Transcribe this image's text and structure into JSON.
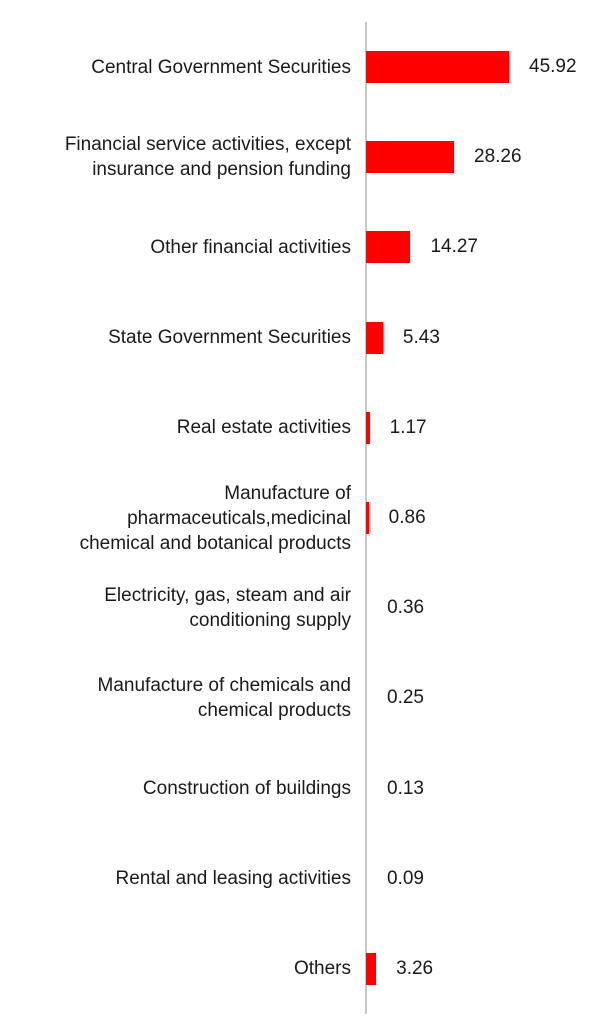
{
  "chart_data": {
    "type": "bar",
    "orientation": "horizontal",
    "categories": [
      "Central Government Securities",
      "Financial service activities, except insurance and pension funding",
      "Other financial activities",
      "State Government Securities",
      "Real estate activities",
      "Manufacture of pharmaceuticals,medicinal chemical and botanical products",
      "Electricity, gas, steam and air conditioning supply",
      "Manufacture of chemicals and chemical products",
      "Construction of buildings",
      "Rental and leasing activities",
      "Others"
    ],
    "category_lines": [
      [
        "Central Government Securities"
      ],
      [
        "Financial service activities, except",
        "insurance and pension funding"
      ],
      [
        "Other financial activities"
      ],
      [
        "State Government Securities"
      ],
      [
        "Real estate activities"
      ],
      [
        "Manufacture of",
        "pharmaceuticals,medicinal",
        "chemical and botanical products"
      ],
      [
        "Electricity, gas, steam and air",
        "conditioning supply"
      ],
      [
        "Manufacture of chemicals and",
        "chemical products"
      ],
      [
        "Construction of buildings"
      ],
      [
        "Rental and leasing activities"
      ],
      [
        "Others"
      ]
    ],
    "values": [
      45.92,
      28.26,
      14.27,
      5.43,
      1.17,
      0.86,
      0.36,
      0.25,
      0.13,
      0.09,
      3.26
    ],
    "value_labels": [
      "45.92",
      "28.26",
      "14.27",
      "5.43",
      "1.17",
      "0.86",
      "0.36",
      "0.25",
      "0.13",
      "0.09",
      "3.26"
    ],
    "xlim": [
      0,
      50
    ],
    "bar_color": "#ff0000",
    "title": "",
    "xlabel": "",
    "ylabel": "",
    "grid": false,
    "legend": "none"
  }
}
